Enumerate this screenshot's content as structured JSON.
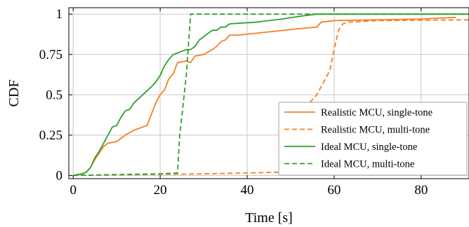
{
  "chart_data": {
    "type": "line",
    "title": "",
    "xlabel": "Time [s]",
    "ylabel": "CDF",
    "xlim": [
      -1,
      91
    ],
    "ylim": [
      -0.02,
      1.04
    ],
    "x_ticks": [
      0,
      20,
      40,
      60,
      80
    ],
    "x_tick_labels": [
      "0",
      "20",
      "40",
      "60",
      "80"
    ],
    "y_ticks": [
      0,
      0.25,
      0.5,
      0.75,
      1
    ],
    "y_tick_labels": [
      "0",
      "0.25",
      "0.5",
      "0.75",
      "1"
    ],
    "grid": true,
    "legend_position": "lower-right",
    "series": [
      {
        "name": "Realistic MCU, single-tone",
        "color": "#f28024",
        "dash": "solid",
        "points": [
          [
            0,
            0
          ],
          [
            2,
            0.01
          ],
          [
            3,
            0.02
          ],
          [
            4,
            0.05
          ],
          [
            5,
            0.1
          ],
          [
            6,
            0.14
          ],
          [
            7,
            0.18
          ],
          [
            8,
            0.2
          ],
          [
            10,
            0.21
          ],
          [
            11,
            0.23
          ],
          [
            12,
            0.25
          ],
          [
            14,
            0.28
          ],
          [
            16,
            0.3
          ],
          [
            17,
            0.31
          ],
          [
            18,
            0.38
          ],
          [
            19,
            0.45
          ],
          [
            20,
            0.5
          ],
          [
            21,
            0.53
          ],
          [
            22,
            0.6
          ],
          [
            23,
            0.63
          ],
          [
            24,
            0.7
          ],
          [
            26,
            0.71
          ],
          [
            27,
            0.7
          ],
          [
            28,
            0.74
          ],
          [
            30,
            0.75
          ],
          [
            32,
            0.78
          ],
          [
            33,
            0.8
          ],
          [
            34,
            0.83
          ],
          [
            35,
            0.84
          ],
          [
            36,
            0.87
          ],
          [
            38,
            0.87
          ],
          [
            45,
            0.89
          ],
          [
            52,
            0.91
          ],
          [
            56,
            0.92
          ],
          [
            57,
            0.95
          ],
          [
            60,
            0.96
          ],
          [
            70,
            0.965
          ],
          [
            80,
            0.97
          ],
          [
            88,
            0.98
          ]
        ]
      },
      {
        "name": "Realistic MCU, multi-tone",
        "color": "#f28024",
        "dash": "dashed",
        "points": [
          [
            0,
            0
          ],
          [
            15,
            0.005
          ],
          [
            30,
            0.01
          ],
          [
            40,
            0.015
          ],
          [
            47,
            0.02
          ],
          [
            48,
            0.02
          ],
          [
            49,
            0.15
          ],
          [
            50,
            0.28
          ],
          [
            52,
            0.34
          ],
          [
            54,
            0.44
          ],
          [
            56,
            0.5
          ],
          [
            58,
            0.6
          ],
          [
            59,
            0.65
          ],
          [
            60,
            0.78
          ],
          [
            61,
            0.9
          ],
          [
            62,
            0.94
          ],
          [
            63,
            0.95
          ],
          [
            70,
            0.96
          ],
          [
            91,
            0.965
          ]
        ]
      },
      {
        "name": "Ideal MCU, single-tone",
        "color": "#2ca02c",
        "dash": "solid",
        "points": [
          [
            0,
            0
          ],
          [
            2,
            0.01
          ],
          [
            3,
            0.02
          ],
          [
            4,
            0.05
          ],
          [
            5,
            0.11
          ],
          [
            6,
            0.15
          ],
          [
            7,
            0.2
          ],
          [
            8,
            0.25
          ],
          [
            9,
            0.3
          ],
          [
            10,
            0.31
          ],
          [
            11,
            0.36
          ],
          [
            12,
            0.4
          ],
          [
            13,
            0.41
          ],
          [
            14,
            0.45
          ],
          [
            16,
            0.5
          ],
          [
            18,
            0.55
          ],
          [
            19,
            0.58
          ],
          [
            20,
            0.62
          ],
          [
            21,
            0.68
          ],
          [
            22,
            0.72
          ],
          [
            23,
            0.75
          ],
          [
            24,
            0.76
          ],
          [
            26,
            0.78
          ],
          [
            27,
            0.78
          ],
          [
            28,
            0.8
          ],
          [
            29,
            0.84
          ],
          [
            30,
            0.86
          ],
          [
            31,
            0.88
          ],
          [
            32,
            0.9
          ],
          [
            33,
            0.9
          ],
          [
            34,
            0.92
          ],
          [
            35,
            0.92
          ],
          [
            36,
            0.94
          ],
          [
            42,
            0.95
          ],
          [
            48,
            0.97
          ],
          [
            53,
            0.99
          ],
          [
            56,
            1
          ],
          [
            91,
            1
          ]
        ]
      },
      {
        "name": "Ideal MCU, multi-tone",
        "color": "#2ca02c",
        "dash": "dashed",
        "points": [
          [
            0,
            0
          ],
          [
            10,
            0.005
          ],
          [
            20,
            0.01
          ],
          [
            24,
            0.015
          ],
          [
            24.5,
            0.25
          ],
          [
            25,
            0.37
          ],
          [
            26,
            0.62
          ],
          [
            27,
            1
          ],
          [
            91,
            1
          ]
        ]
      }
    ]
  }
}
